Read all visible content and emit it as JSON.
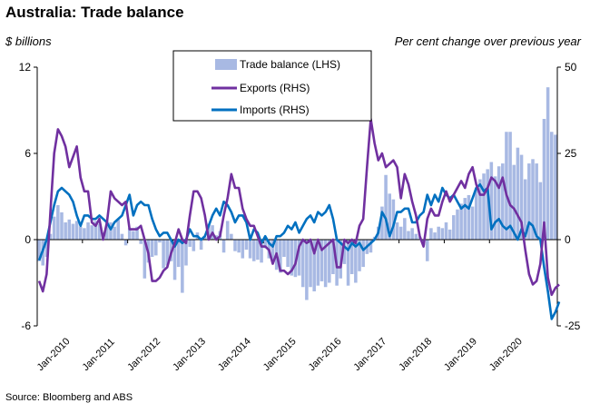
{
  "title": "Australia: Trade balance",
  "source": "Source: Bloomberg and ABS",
  "chart_data": {
    "type": "bar+line",
    "title": "Australia: Trade balance",
    "ylabel_left": "$ billions",
    "ylabel_right": "Per cent change over previous year",
    "ylim_left": [
      -6,
      12
    ],
    "ylim_right": [
      -25,
      50
    ],
    "yticks_left": [
      "12",
      "6",
      "0",
      "-6"
    ],
    "yticks_right": [
      "50",
      "25",
      "0",
      "-25"
    ],
    "xtick_labels": [
      "Jan-2010",
      "Jan-2011",
      "Jan-2012",
      "Jan-2013",
      "Jan-2014",
      "Jan-2015",
      "Jan-2016",
      "Jan-2017",
      "Jan-2018",
      "Jan-2019",
      "Jan-2020"
    ],
    "x_start": "Jan-2010",
    "x_end": "Jun-2020",
    "grid": false,
    "legend_position": "top-center",
    "colors": {
      "trade_balance": "#a8b9e3",
      "exports": "#7030a0",
      "imports": "#0070c0"
    },
    "series": [
      {
        "name": "Trade balance (LHS)",
        "kind": "bar",
        "axis": "left",
        "values": [
          -1.5,
          -1.8,
          -1.2,
          0.4,
          1.6,
          2.4,
          1.9,
          1.2,
          1.4,
          1.1,
          1.3,
          0.9,
          0.8,
          1.2,
          1.0,
          1.3,
          1.1,
          0.5,
          1.3,
          1.2,
          0.9,
          1.4,
          0.4,
          -0.4,
          0.8,
          0.6,
          0.9,
          -0.3,
          -2.7,
          -1.6,
          -1.2,
          -1.1,
          -0.2,
          -2.0,
          -1.8,
          -1.5,
          -2.8,
          -1.9,
          -3.7,
          -1.8,
          -0.5,
          -0.8,
          0.5,
          -0.7,
          0.2,
          1.1,
          1.0,
          0.3,
          0.6,
          -0.9,
          1.3,
          0.4,
          -0.8,
          -0.9,
          -1.3,
          -0.7,
          -1.3,
          -1.5,
          -1.4,
          -1.6,
          -0.6,
          -1.3,
          -1.4,
          -2.1,
          -2.3,
          -1.2,
          -1.9,
          -2.5,
          -2.6,
          -2.5,
          -3.3,
          -4.2,
          -3.3,
          -3.6,
          -3.2,
          -2.9,
          -3.3,
          -3.0,
          -2.4,
          -3.2,
          -2.7,
          -1.7,
          -3.2,
          -2.4,
          -3.0,
          -2.2,
          -1.9,
          -1.0,
          -0.9,
          0.2,
          0.9,
          2.3,
          4.5,
          3.2,
          2.8,
          1.2,
          0.9,
          1.5,
          0.6,
          0.8,
          0.4,
          0.2,
          -0.4,
          -1.5,
          0.8,
          0.5,
          0.9,
          0.8,
          1.2,
          0.7,
          1.7,
          2.1,
          2.5,
          2.9,
          3.1,
          2.3,
          3.6,
          4.2,
          4.6,
          4.9,
          5.4,
          4.4,
          5.1,
          5.3,
          7.5,
          7.5,
          5.2,
          6.4,
          5.9,
          4.2,
          5.3,
          5.6,
          5.3,
          4.0,
          8.4,
          10.6,
          7.5,
          7.3
        ]
      },
      {
        "name": "Exports (RHS)",
        "kind": "line",
        "axis": "right",
        "values": [
          -12,
          -15,
          -10,
          8,
          25,
          32,
          30,
          27,
          21,
          24,
          27,
          18,
          14,
          14,
          5,
          4,
          6,
          0,
          5,
          14,
          12,
          11,
          10,
          11,
          3,
          3,
          3,
          4,
          0,
          -4,
          -12,
          -12,
          -11,
          -9,
          -8,
          -4,
          -1,
          3,
          0,
          -1,
          7,
          14,
          14,
          12,
          7,
          0,
          2,
          0,
          1,
          7,
          12,
          19,
          15,
          15,
          9,
          6,
          4,
          4,
          1,
          -2,
          -2,
          -3,
          -7,
          -4,
          -9,
          -9,
          -10,
          -9,
          -7,
          -2,
          0,
          -1,
          0,
          -4,
          0,
          -3,
          -2,
          -1,
          0,
          -8,
          -8,
          0,
          -1,
          0,
          -1,
          4,
          6,
          21,
          35,
          28,
          23,
          25,
          21,
          22,
          23,
          21,
          12,
          19,
          16,
          11,
          7,
          1,
          -2,
          6,
          9,
          7,
          7,
          11,
          14,
          11,
          13,
          15,
          17,
          15,
          19,
          21,
          16,
          13,
          13,
          15,
          18,
          17,
          15,
          18,
          13,
          10,
          9,
          7,
          5,
          -3,
          -10,
          -13,
          -12,
          -7,
          5,
          -11,
          -16,
          -14,
          -13
        ]
      },
      {
        "name": "Imports (RHS)",
        "kind": "line",
        "axis": "right",
        "values": [
          -6,
          -3,
          0,
          5,
          10,
          14,
          15,
          14,
          13,
          11,
          7,
          4,
          7,
          7,
          6,
          6,
          7,
          6,
          5,
          3,
          5,
          6,
          7,
          10,
          13,
          7,
          10,
          11,
          10,
          10,
          6,
          3,
          1,
          2,
          2,
          0,
          -2,
          0,
          -1,
          0,
          3,
          1,
          1,
          0,
          1,
          4,
          7,
          9,
          7,
          11,
          10,
          8,
          5,
          7,
          7,
          5,
          0,
          3,
          2,
          -1,
          1,
          -1,
          -2,
          1,
          1,
          2,
          4,
          3,
          5,
          2,
          4,
          6,
          7,
          5,
          8,
          7,
          8,
          10,
          6,
          0,
          -1,
          -2,
          -3,
          -1,
          -2,
          -1,
          -3,
          -2,
          -1,
          0,
          2,
          8,
          6,
          1,
          4,
          8,
          8,
          9,
          9,
          5,
          5,
          7,
          8,
          13,
          10,
          13,
          11,
          15,
          13,
          12,
          13,
          11,
          9,
          10,
          9,
          12,
          15,
          16,
          14,
          15,
          3,
          5,
          6,
          4,
          3,
          4,
          2,
          0,
          3,
          1,
          5,
          4,
          1,
          0,
          -8,
          -15,
          -23,
          -21,
          -18
        ]
      }
    ]
  }
}
